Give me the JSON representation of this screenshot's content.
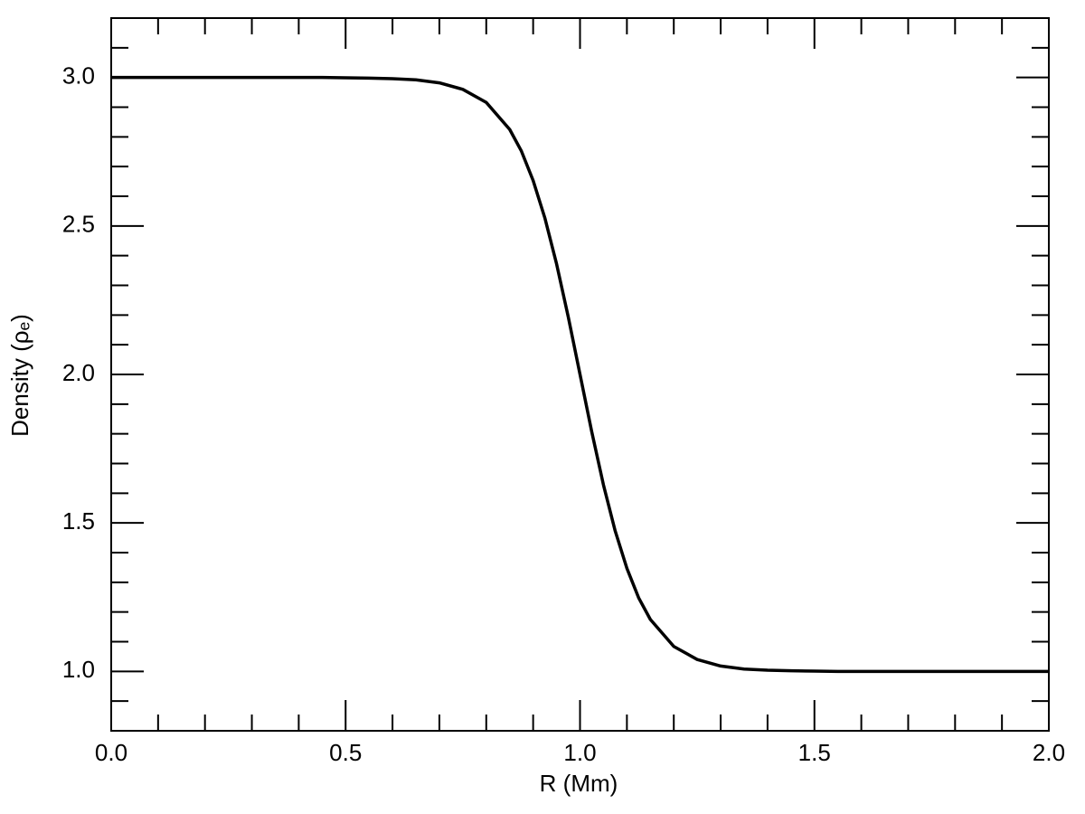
{
  "chart_data": {
    "type": "line",
    "xlabel": "R (Mm)",
    "ylabel": "Density (ρₑ)",
    "x": [
      0,
      0.05,
      0.1,
      0.15,
      0.2,
      0.25,
      0.3,
      0.35,
      0.4,
      0.45,
      0.5,
      0.55,
      0.6,
      0.65,
      0.7,
      0.75,
      0.8,
      0.85,
      0.875,
      0.9,
      0.925,
      0.95,
      0.975,
      1.0,
      1.025,
      1.05,
      1.075,
      1.1,
      1.125,
      1.15,
      1.2,
      1.25,
      1.3,
      1.35,
      1.4,
      1.45,
      1.5,
      1.55,
      1.6,
      1.65,
      1.7,
      1.75,
      1.8,
      1.85,
      1.9,
      1.95,
      2.0
    ],
    "series": [
      {
        "color": "#000000",
        "values": [
          3.0,
          3.0,
          3.0,
          3.0,
          3.0,
          3.0,
          3.0,
          3.0,
          3.0,
          3.0,
          2.999,
          2.998,
          2.996,
          2.992,
          2.982,
          2.96,
          2.916,
          2.825,
          2.752,
          2.653,
          2.527,
          2.372,
          2.193,
          2.0,
          1.807,
          1.628,
          1.473,
          1.347,
          1.248,
          1.175,
          1.084,
          1.04,
          1.018,
          1.008,
          1.004,
          1.002,
          1.001,
          1.0,
          1.0,
          1.0,
          1.0,
          1.0,
          1.0,
          1.0,
          1.0,
          1.0,
          1.0
        ]
      }
    ],
    "xlim": [
      0,
      2
    ],
    "ylim": [
      0.8,
      3.2
    ],
    "xticks": [
      {
        "value": 0,
        "label": "0.0"
      },
      0.5,
      {
        "value": 1,
        "label": "1.0"
      },
      1.5,
      {
        "value": 2,
        "label": "2.0"
      }
    ],
    "yticks": [
      {
        "value": 1,
        "label": "1.0"
      },
      1.5,
      {
        "value": 2,
        "label": "2.0"
      },
      2.5,
      {
        "value": 3,
        "label": "3.0"
      }
    ],
    "xminorticks": [
      0.1,
      0.2,
      0.3,
      0.4,
      0.6,
      0.7,
      0.8,
      0.9,
      1.1,
      1.2,
      1.3,
      1.4,
      1.6,
      1.7,
      1.8,
      1.9
    ],
    "yminorticks": [
      0.8,
      0.9,
      1.1,
      1.2,
      1.3,
      1.4,
      1.6,
      1.7,
      1.8,
      1.9,
      2.1,
      2.2,
      2.3,
      2.4,
      2.6,
      2.7,
      2.8,
      2.9,
      3.1,
      3.2
    ],
    "grid": false
  }
}
